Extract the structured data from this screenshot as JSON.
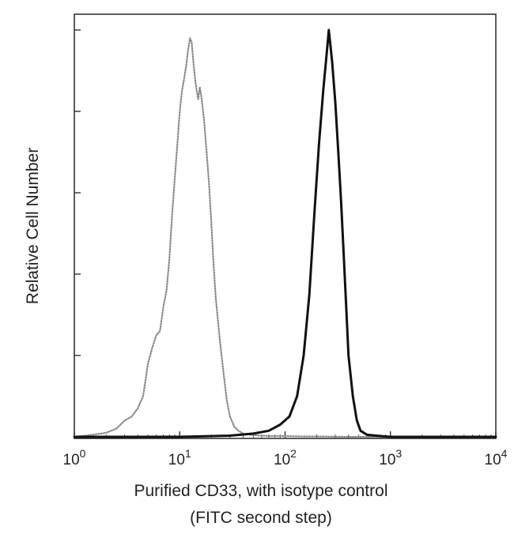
{
  "chart_data": {
    "type": "line",
    "title": "",
    "ylabel": "Relative Cell Number",
    "xlabel_lines": [
      "Purified CD33, with isotype control",
      "(FITC second step)"
    ],
    "x_scale": "log",
    "xlim": [
      1,
      10000
    ],
    "ylim": [
      0,
      100
    ],
    "x_ticks": [
      {
        "value": 1,
        "base": "10",
        "exp": "0"
      },
      {
        "value": 10,
        "base": "10",
        "exp": "1"
      },
      {
        "value": 100,
        "base": "10",
        "exp": "2"
      },
      {
        "value": 1000,
        "base": "10",
        "exp": "3"
      },
      {
        "value": 10000,
        "base": "10",
        "exp": "4"
      }
    ],
    "grid": false,
    "legend": "none",
    "series": [
      {
        "style": "dotted",
        "color": "#8a8a8a",
        "x": [
          1,
          1.5,
          2,
          2.5,
          3,
          3.5,
          4,
          4.5,
          5,
          5.5,
          6,
          6.5,
          7,
          7.5,
          8,
          8.5,
          9,
          9.5,
          10,
          10.5,
          11,
          11.5,
          12,
          12.5,
          13,
          13.5,
          14,
          14.5,
          15,
          15.5,
          16,
          17,
          18,
          19,
          20,
          21,
          22,
          24,
          26,
          28,
          30,
          33,
          36,
          40,
          50,
          70,
          100,
          150,
          200,
          400,
          1000,
          10000
        ],
        "y": [
          0,
          0.5,
          1,
          2,
          4,
          5,
          7,
          10,
          18,
          22,
          25,
          26,
          32,
          36,
          44,
          55,
          64,
          72,
          80,
          85,
          88,
          91,
          95,
          98,
          97,
          92,
          88,
          85,
          83,
          86,
          84,
          78,
          70,
          62,
          52,
          42,
          34,
          24,
          16,
          9,
          5,
          2.5,
          1.5,
          0.8,
          0.4,
          0.2,
          0.2,
          0.1,
          0.1,
          0,
          0,
          0
        ]
      },
      {
        "style": "solid",
        "color": "#111111",
        "x": [
          1,
          10,
          30,
          50,
          70,
          90,
          110,
          130,
          150,
          170,
          190,
          210,
          230,
          250,
          260,
          270,
          280,
          300,
          320,
          340,
          360,
          380,
          400,
          440,
          480,
          520,
          600,
          800,
          1000,
          10000
        ],
        "y": [
          0,
          0,
          0.3,
          0.8,
          1.5,
          3,
          5,
          10,
          20,
          35,
          55,
          72,
          85,
          95,
          100,
          96,
          92,
          82,
          70,
          58,
          45,
          32,
          20,
          10,
          4,
          1.5,
          0.5,
          0.2,
          0,
          0
        ]
      }
    ]
  }
}
